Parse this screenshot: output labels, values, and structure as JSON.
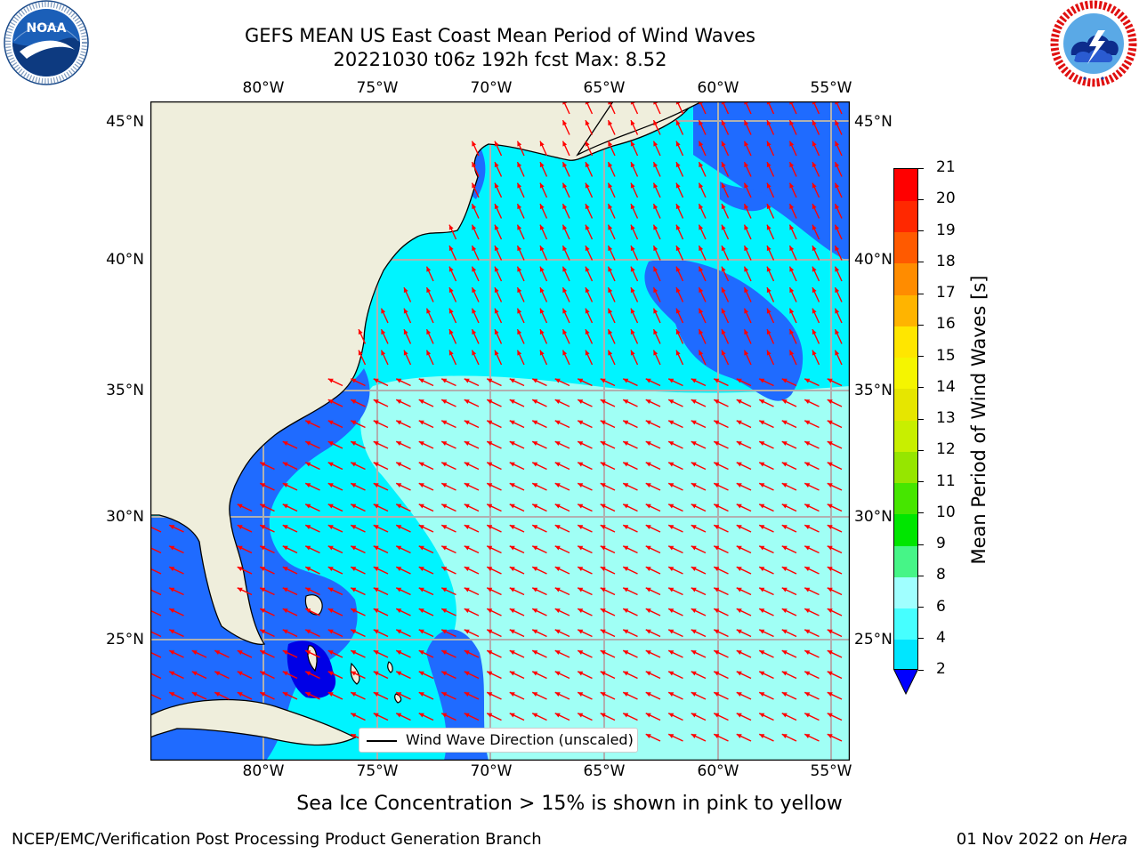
{
  "header": {
    "title_line1": "GEFS MEAN US East Coast Mean Period of Wind Waves",
    "title_line2": "20221030 t06z 192h fcst   Max: 8.52"
  },
  "logos": {
    "noaa": {
      "text": "NOAA",
      "ring_text": "NATIONAL OCEANIC AND ATMOSPHERIC ADMINISTRATION · U.S. DEPARTMENT OF COMMERCE"
    },
    "nws": {
      "ring_text": "NATIONAL WEATHER SERVICE"
    }
  },
  "map": {
    "longitude_labels": [
      "80°W",
      "75°W",
      "70°W",
      "65°W",
      "60°W",
      "55°W"
    ],
    "latitude_labels": [
      "45°N",
      "40°N",
      "35°N",
      "30°N",
      "25°N"
    ],
    "lon_range": [
      -85,
      -54.5
    ],
    "lat_range": [
      20.5,
      45.5
    ],
    "wind_wave_direction": "toward west-northwest (vectors drawn unscaled)",
    "colors": {
      "land": "#efeedc",
      "coast": "#000000",
      "grid": "#b0b0b0",
      "vectors": "#ff0000",
      "field_low": "#0a6cff",
      "field_mid": "#00f4ff",
      "field_high": "#a0fff5"
    }
  },
  "legend": {
    "label": "Wind Wave Direction (unscaled)"
  },
  "colorbar": {
    "label": "Mean Period of Wind Waves [s]",
    "ticks": [
      "2",
      "4",
      "6",
      "8",
      "9",
      "10",
      "11",
      "12",
      "13",
      "14",
      "15",
      "16",
      "17",
      "18",
      "19",
      "20",
      "21"
    ],
    "colors": [
      "#0073ff",
      "#00e6ff",
      "#46ffff",
      "#a0ffff",
      "#46f587",
      "#00e600",
      "#46e600",
      "#96e600",
      "#c8ef00",
      "#e6e600",
      "#f5f500",
      "#ffe600",
      "#ffb400",
      "#ff8c00",
      "#ff5a00",
      "#ff2800",
      "#ff0000"
    ],
    "underflow_color": "#0000ff"
  },
  "caption": "Sea Ice Concentration > 15% is shown in pink to yellow",
  "footer": {
    "left": "NCEP/EMC/Verification Post Processing Product Generation Branch",
    "right_date": "01 Nov 2022 on",
    "right_host": "Hera"
  }
}
